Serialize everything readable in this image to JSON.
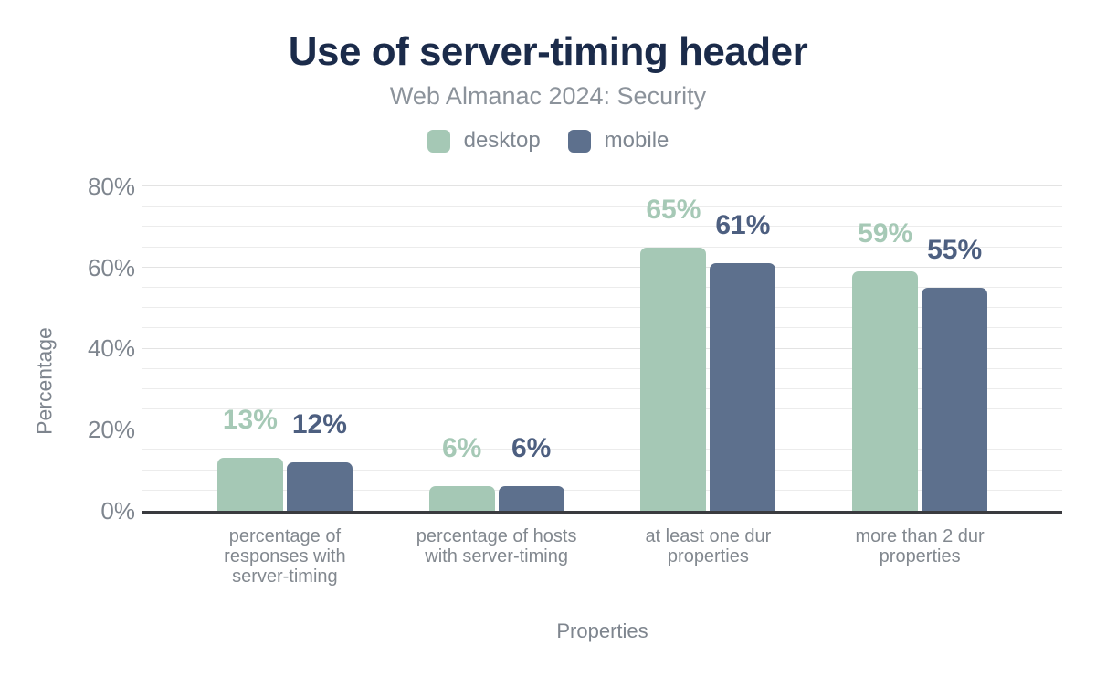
{
  "header": {
    "title": "Use of server-timing header",
    "subtitle": "Web Almanac 2024: Security"
  },
  "colors": {
    "title": "#1b2b4a",
    "subtitle": "#8c939b",
    "axis_text": "#7e858e",
    "category_text": "#82888f",
    "axis_line": "#3a3b3f",
    "gridline": "#ececec",
    "background": "#ffffff",
    "desktop_bar": "#a5c8b5",
    "mobile_bar": "#5d708d",
    "desktop_label": "#a6c9b6",
    "mobile_label": "#4d5f80"
  },
  "chart_data": {
    "type": "bar",
    "title": "Use of server-timing header",
    "subtitle": "Web Almanac 2024: Security",
    "xlabel": "Properties",
    "ylabel": "Percentage",
    "unit": "%",
    "ylim": [
      0,
      80
    ],
    "yticks": [
      "0%",
      "20%",
      "40%",
      "60%",
      "80%"
    ],
    "grid": "horizontal lines every 5%, light gray, on",
    "legend_position": "top center",
    "categories": [
      "percentage of responses with server-timing",
      "percentage of hosts with server-timing",
      "at least one dur properties",
      "more than 2 dur properties"
    ],
    "category_display_lines": [
      [
        "percentage of",
        "responses with",
        "server-timing"
      ],
      [
        "percentage of hosts",
        "with server-timing"
      ],
      [
        "at least one dur",
        "properties"
      ],
      [
        "more than 2 dur",
        "properties"
      ]
    ],
    "series": [
      {
        "name": "desktop",
        "color": "#a5c8b5",
        "label_color": "#a6c9b6",
        "values": [
          13,
          6,
          65,
          59
        ],
        "data_labels": [
          "13%",
          "6%",
          "65%",
          "59%"
        ]
      },
      {
        "name": "mobile",
        "color": "#5d708d",
        "label_color": "#4d5f80",
        "values": [
          12,
          6,
          61,
          55
        ],
        "data_labels": [
          "12%",
          "6%",
          "61%",
          "55%"
        ]
      }
    ]
  }
}
